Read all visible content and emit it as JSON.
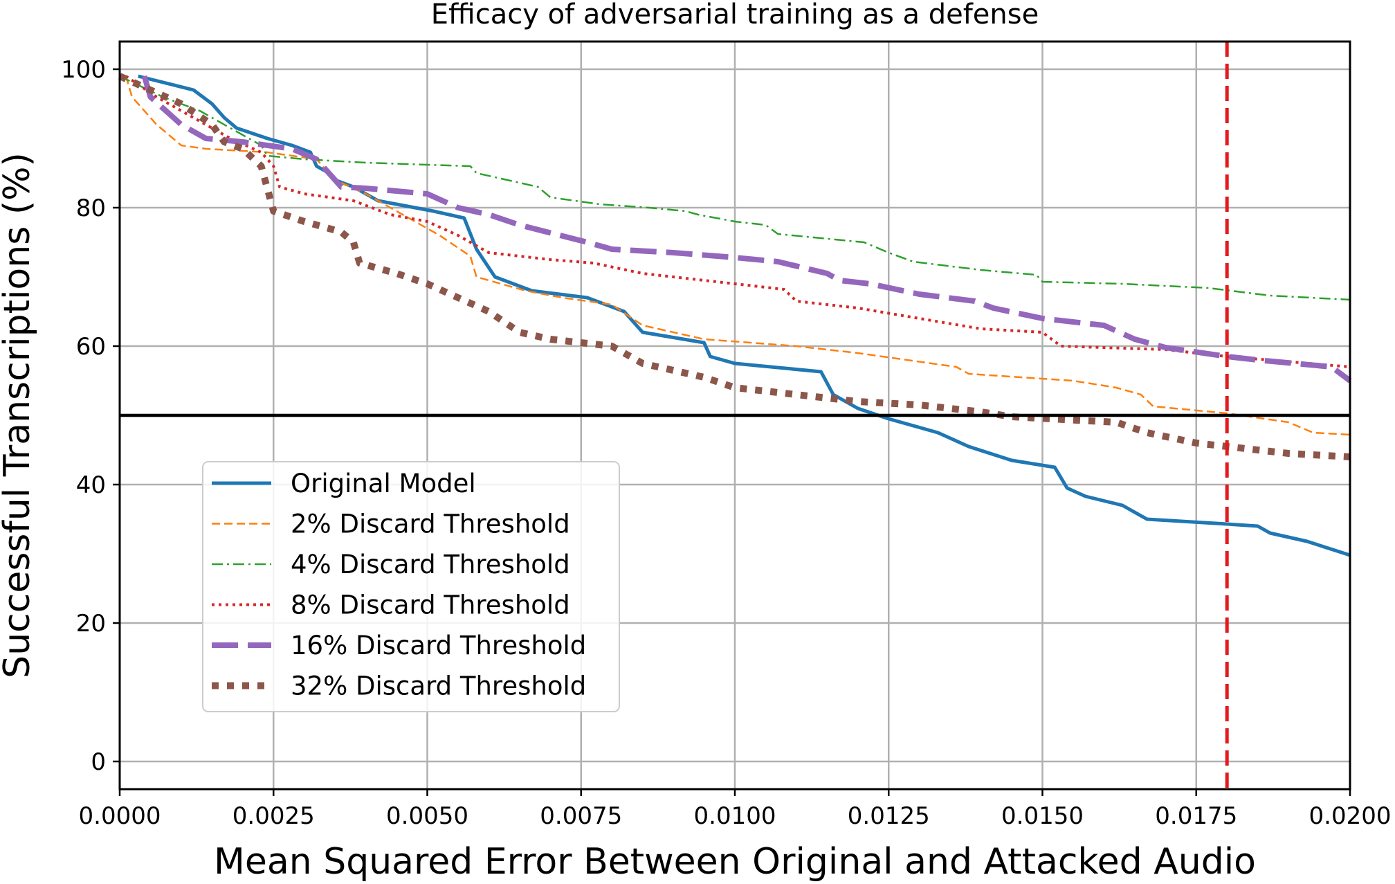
{
  "chart_data": {
    "type": "line",
    "title": "Efficacy of adversarial training as a defense",
    "xlabel": "Mean Squared Error Between Original and Attacked Audio",
    "ylabel": "Successful Transcriptions (%)",
    "xlim": [
      0.0,
      0.02
    ],
    "ylim": [
      -4,
      104
    ],
    "x_ticks": [
      "0.0000",
      "0.0025",
      "0.0050",
      "0.0075",
      "0.0100",
      "0.0125",
      "0.0150",
      "0.0175",
      "0.0200"
    ],
    "y_ticks": [
      "0",
      "20",
      "40",
      "60",
      "80",
      "100"
    ],
    "grid": true,
    "legend_position": "lower-left",
    "reference_lines": [
      {
        "orientation": "horizontal",
        "value": 50,
        "color": "#000000"
      },
      {
        "orientation": "vertical",
        "value": 0.018,
        "color": "#e31a1c",
        "style": "dashed"
      }
    ],
    "series": [
      {
        "name": "Original Model",
        "color": "#1f77b4",
        "style": "solid",
        "points": [
          [
            0.0003,
            99
          ],
          [
            0.0012,
            97
          ],
          [
            0.0015,
            95
          ],
          [
            0.0017,
            93
          ],
          [
            0.0019,
            91.5
          ],
          [
            0.0024,
            90
          ],
          [
            0.0028,
            89
          ],
          [
            0.0031,
            88
          ],
          [
            0.0032,
            86
          ],
          [
            0.0034,
            85
          ],
          [
            0.0035,
            84
          ],
          [
            0.0038,
            83
          ],
          [
            0.0042,
            81
          ],
          [
            0.0048,
            80
          ],
          [
            0.0051,
            79.5
          ],
          [
            0.0056,
            78.5
          ],
          [
            0.0058,
            74
          ],
          [
            0.0061,
            70
          ],
          [
            0.0067,
            68
          ],
          [
            0.0076,
            67
          ],
          [
            0.0082,
            65
          ],
          [
            0.0085,
            62
          ],
          [
            0.0095,
            60.5
          ],
          [
            0.0096,
            58.5
          ],
          [
            0.01,
            57.5
          ],
          [
            0.0114,
            56.3
          ],
          [
            0.0116,
            53
          ],
          [
            0.0118,
            52
          ],
          [
            0.012,
            51
          ],
          [
            0.0125,
            49.5
          ],
          [
            0.0133,
            47.5
          ],
          [
            0.0138,
            45.5
          ],
          [
            0.0145,
            43.5
          ],
          [
            0.0152,
            42.5
          ],
          [
            0.0154,
            39.5
          ],
          [
            0.0157,
            38.3
          ],
          [
            0.0163,
            37
          ],
          [
            0.0167,
            35
          ],
          [
            0.018,
            34.3
          ],
          [
            0.0185,
            34
          ],
          [
            0.0187,
            33
          ],
          [
            0.0193,
            31.8
          ],
          [
            0.02,
            29.8
          ]
        ]
      },
      {
        "name": "2% Discard Threshold",
        "color": "#ff7f0e",
        "style": "dashed",
        "points": [
          [
            0.0001,
            99
          ],
          [
            0.0002,
            96
          ],
          [
            0.0006,
            92
          ],
          [
            0.001,
            89
          ],
          [
            0.0014,
            88.5
          ],
          [
            0.0024,
            88
          ],
          [
            0.0032,
            87
          ],
          [
            0.0035,
            84
          ],
          [
            0.004,
            82
          ],
          [
            0.0046,
            79
          ],
          [
            0.0052,
            76
          ],
          [
            0.0057,
            73
          ],
          [
            0.0058,
            70
          ],
          [
            0.0066,
            68
          ],
          [
            0.0072,
            67
          ],
          [
            0.008,
            66
          ],
          [
            0.0085,
            63
          ],
          [
            0.0095,
            61
          ],
          [
            0.011,
            60
          ],
          [
            0.012,
            59
          ],
          [
            0.0136,
            57
          ],
          [
            0.0138,
            56
          ],
          [
            0.0155,
            55
          ],
          [
            0.0162,
            54
          ],
          [
            0.0166,
            53
          ],
          [
            0.0168,
            51.3
          ],
          [
            0.018,
            50.3
          ],
          [
            0.019,
            49
          ],
          [
            0.0194,
            47.5
          ],
          [
            0.02,
            47.2
          ]
        ]
      },
      {
        "name": "4% Discard Threshold",
        "color": "#2ca02c",
        "style": "dashdot",
        "points": [
          [
            0.0,
            99
          ],
          [
            0.0007,
            96
          ],
          [
            0.0013,
            94
          ],
          [
            0.0019,
            91
          ],
          [
            0.0023,
            89
          ],
          [
            0.0024,
            87.5
          ],
          [
            0.003,
            87
          ],
          [
            0.004,
            86.5
          ],
          [
            0.005,
            86.2
          ],
          [
            0.0057,
            86
          ],
          [
            0.0058,
            85
          ],
          [
            0.0068,
            83
          ],
          [
            0.007,
            81.5
          ],
          [
            0.0078,
            80.5
          ],
          [
            0.0086,
            80
          ],
          [
            0.0092,
            79.5
          ],
          [
            0.0094,
            79
          ],
          [
            0.01,
            78
          ],
          [
            0.0105,
            77.5
          ],
          [
            0.0107,
            76.2
          ],
          [
            0.0121,
            75
          ],
          [
            0.0125,
            73.5
          ],
          [
            0.0129,
            72.2
          ],
          [
            0.014,
            71
          ],
          [
            0.0149,
            70.3
          ],
          [
            0.015,
            69.3
          ],
          [
            0.0163,
            69
          ],
          [
            0.0177,
            68.4
          ],
          [
            0.0187,
            67.3
          ],
          [
            0.02,
            66.7
          ]
        ]
      },
      {
        "name": "8% Discard Threshold",
        "color": "#d62728",
        "style": "dotted",
        "points": [
          [
            0.0001,
            99
          ],
          [
            0.0006,
            96
          ],
          [
            0.0012,
            93
          ],
          [
            0.0018,
            90
          ],
          [
            0.0023,
            88
          ],
          [
            0.0025,
            86
          ],
          [
            0.0026,
            83
          ],
          [
            0.003,
            82
          ],
          [
            0.0038,
            81
          ],
          [
            0.0044,
            79
          ],
          [
            0.005,
            78
          ],
          [
            0.0055,
            76
          ],
          [
            0.006,
            73.5
          ],
          [
            0.007,
            72.5
          ],
          [
            0.0077,
            72
          ],
          [
            0.0085,
            70.5
          ],
          [
            0.009,
            70
          ],
          [
            0.01,
            69
          ],
          [
            0.0108,
            68.2
          ],
          [
            0.011,
            66.5
          ],
          [
            0.012,
            65.5
          ],
          [
            0.013,
            64
          ],
          [
            0.014,
            62.5
          ],
          [
            0.015,
            62
          ],
          [
            0.0153,
            60
          ],
          [
            0.017,
            59.5
          ],
          [
            0.018,
            58.5
          ],
          [
            0.02,
            57
          ]
        ]
      },
      {
        "name": "16% Discard Threshold",
        "color": "#9467bd",
        "style": "longdash",
        "points": [
          [
            0.0004,
            99
          ],
          [
            0.0005,
            96
          ],
          [
            0.001,
            92
          ],
          [
            0.0014,
            90
          ],
          [
            0.002,
            89.5
          ],
          [
            0.0028,
            88.5
          ],
          [
            0.0032,
            87
          ],
          [
            0.0036,
            83
          ],
          [
            0.004,
            82.8
          ],
          [
            0.005,
            82
          ],
          [
            0.0055,
            80
          ],
          [
            0.006,
            79
          ],
          [
            0.0065,
            77.5
          ],
          [
            0.0076,
            75
          ],
          [
            0.008,
            74
          ],
          [
            0.009,
            73.5
          ],
          [
            0.01,
            72.8
          ],
          [
            0.0107,
            72.2
          ],
          [
            0.0115,
            70.5
          ],
          [
            0.0117,
            69.5
          ],
          [
            0.0122,
            69
          ],
          [
            0.013,
            67.5
          ],
          [
            0.0139,
            66.5
          ],
          [
            0.0142,
            65.5
          ],
          [
            0.015,
            64
          ],
          [
            0.016,
            63
          ],
          [
            0.0165,
            61
          ],
          [
            0.017,
            59.8
          ],
          [
            0.018,
            58.5
          ],
          [
            0.0185,
            58
          ],
          [
            0.0197,
            57
          ],
          [
            0.02,
            55
          ]
        ]
      },
      {
        "name": "32% Discard Threshold",
        "color": "#8c564b",
        "style": "dotted-heavy",
        "points": [
          [
            0.0,
            99
          ],
          [
            0.0005,
            97
          ],
          [
            0.001,
            95
          ],
          [
            0.0015,
            92
          ],
          [
            0.0017,
            89.5
          ],
          [
            0.002,
            88.5
          ],
          [
            0.0023,
            86
          ],
          [
            0.0025,
            79.5
          ],
          [
            0.003,
            78
          ],
          [
            0.0036,
            76.5
          ],
          [
            0.0038,
            75
          ],
          [
            0.0039,
            72
          ],
          [
            0.0045,
            70.5
          ],
          [
            0.005,
            69
          ],
          [
            0.0055,
            67
          ],
          [
            0.006,
            65
          ],
          [
            0.0065,
            62
          ],
          [
            0.007,
            61
          ],
          [
            0.008,
            60
          ],
          [
            0.0085,
            57.5
          ],
          [
            0.0095,
            55.5
          ],
          [
            0.01,
            54
          ],
          [
            0.011,
            53
          ],
          [
            0.012,
            52
          ],
          [
            0.013,
            51.5
          ],
          [
            0.014,
            50.5
          ],
          [
            0.0145,
            49.8
          ],
          [
            0.0162,
            49
          ],
          [
            0.0167,
            47.5
          ],
          [
            0.0175,
            46
          ],
          [
            0.018,
            45.5
          ],
          [
            0.019,
            44.5
          ],
          [
            0.02,
            44
          ]
        ]
      }
    ]
  }
}
